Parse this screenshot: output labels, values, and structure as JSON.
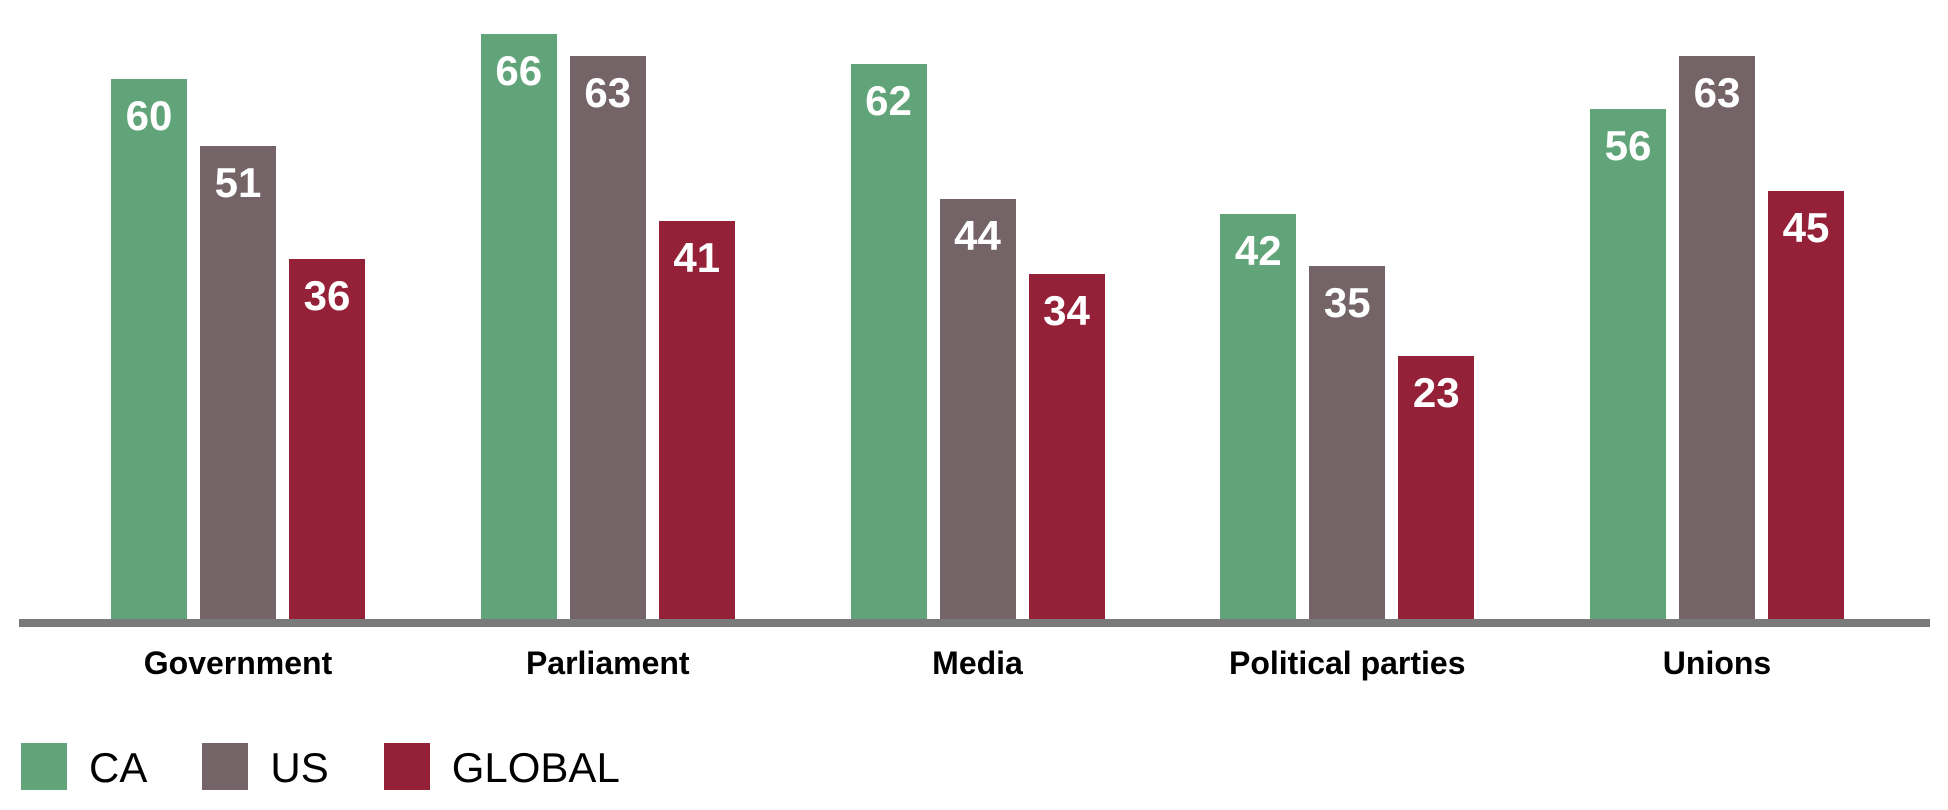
{
  "chart_data": {
    "type": "bar",
    "title": "",
    "categories": [
      "Government",
      "Parliament",
      "Media",
      "Political parties",
      "Unions"
    ],
    "series": [
      {
        "name": "CA",
        "color": "#61A479",
        "values": [
          60,
          66,
          62,
          42,
          56
        ]
      },
      {
        "name": "US",
        "color": "#756467",
        "values": [
          51,
          63,
          44,
          35,
          63
        ]
      },
      {
        "name": "GLOBAL",
        "color": "#952139",
        "values": [
          36,
          41,
          34,
          23,
          45
        ]
      }
    ],
    "value_labels_shown": true,
    "value_label_color": "#FFFFFF",
    "axis_line_color": "#7A7A7A",
    "background_color": "#FFFFFF",
    "grid": false,
    "y_axis_visible": false,
    "legend_position": "bottom-left"
  }
}
